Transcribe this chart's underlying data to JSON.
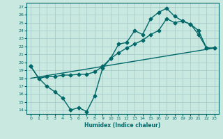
{
  "bg_color": "#c8e8e0",
  "grid_color": "#a0c8c8",
  "line_color": "#006868",
  "xlabel": "Humidex (Indice chaleur)",
  "xlim": [
    -0.5,
    23.5
  ],
  "ylim": [
    13.5,
    27.5
  ],
  "yticks": [
    14,
    15,
    16,
    17,
    18,
    19,
    20,
    21,
    22,
    23,
    24,
    25,
    26,
    27
  ],
  "xticks": [
    0,
    1,
    2,
    3,
    4,
    5,
    6,
    7,
    8,
    9,
    10,
    11,
    12,
    13,
    14,
    15,
    16,
    17,
    18,
    19,
    20,
    21,
    22,
    23
  ],
  "line1_x": [
    0,
    1,
    2,
    3,
    4,
    5,
    6,
    7,
    8,
    9,
    10,
    11,
    12,
    13,
    14,
    15,
    16,
    17,
    18,
    19,
    20,
    21,
    22,
    23
  ],
  "line1_y": [
    19.5,
    18.0,
    17.0,
    16.3,
    15.5,
    14.0,
    14.3,
    13.8,
    15.8,
    19.3,
    20.5,
    22.3,
    22.5,
    24.0,
    23.5,
    25.5,
    26.3,
    26.8,
    25.8,
    25.2,
    24.8,
    23.5,
    21.8,
    21.8
  ],
  "line2_x": [
    0,
    1,
    2,
    3,
    4,
    5,
    6,
    7,
    8,
    9,
    10,
    11,
    12,
    13,
    14,
    15,
    16,
    17,
    18,
    19,
    20,
    21,
    22,
    23
  ],
  "line2_y": [
    19.5,
    18.0,
    18.2,
    18.2,
    18.4,
    18.4,
    18.5,
    18.5,
    18.8,
    19.5,
    20.5,
    21.2,
    21.8,
    22.3,
    22.8,
    23.5,
    24.0,
    25.5,
    25.0,
    25.2,
    24.8,
    24.0,
    21.8,
    21.8
  ],
  "line3_x": [
    0,
    23
  ],
  "line3_y": [
    18.0,
    21.8
  ],
  "markersize": 2.5,
  "linewidth": 1.0
}
